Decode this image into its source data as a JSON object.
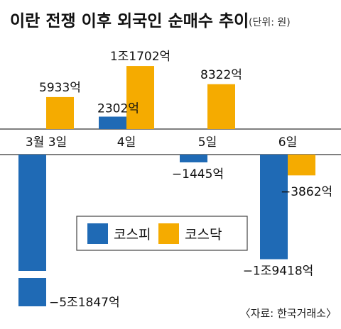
{
  "title": "이란 전쟁 이후 외국인 순매수 추이",
  "unit_note": "(단위: 원)",
  "source": "〈자료: 한국거래소〉",
  "chart_data": {
    "type": "bar",
    "categories": [
      "3월 3일",
      "4일",
      "5일",
      "6일"
    ],
    "series": [
      {
        "name": "코스피",
        "color": "#1f6ab5",
        "values": [
          -51847,
          2302,
          -1445,
          -19418
        ],
        "labels": [
          "−5조1847억",
          "2302억",
          "−1445억",
          "−1조9418억"
        ]
      },
      {
        "name": "코스닥",
        "color": "#f5ab00",
        "values": [
          5933,
          11702,
          8322,
          -3862
        ],
        "labels": [
          "5933억",
          "1조1702억",
          "8322억",
          "−3862억"
        ]
      }
    ],
    "unit": "억원",
    "axis_break": {
      "series": 0,
      "category": 0
    }
  }
}
